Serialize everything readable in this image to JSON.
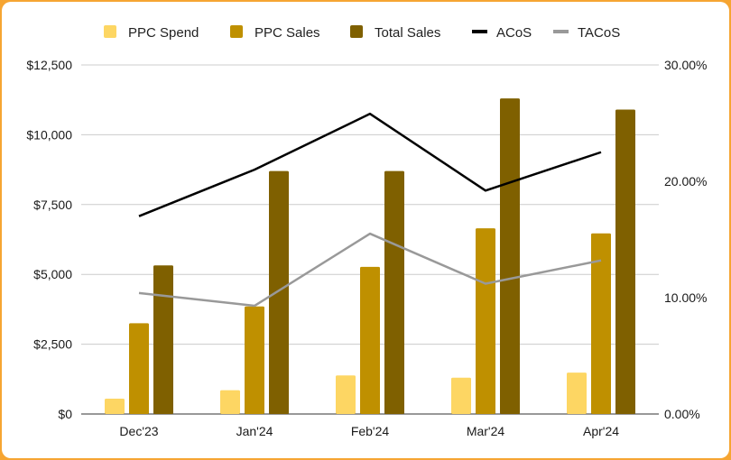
{
  "chart_data": {
    "type": "bar",
    "categories": [
      "Dec'23",
      "Jan'24",
      "Feb'24",
      "Mar'24",
      "Apr'24"
    ],
    "series": [
      {
        "name": "PPC Spend",
        "kind": "bar",
        "axis": "left",
        "color": "#fdd663",
        "values": [
          550,
          850,
          1380,
          1300,
          1480
        ]
      },
      {
        "name": "PPC Sales",
        "kind": "bar",
        "axis": "left",
        "color": "#bf9000",
        "values": [
          3250,
          3850,
          5270,
          6650,
          6470
        ]
      },
      {
        "name": "Total Sales",
        "kind": "bar",
        "axis": "left",
        "color": "#7f6000",
        "values": [
          5320,
          8700,
          8700,
          11300,
          10900
        ]
      },
      {
        "name": "ACoS",
        "kind": "line",
        "axis": "right",
        "color": "#000000",
        "values": [
          17.0,
          21.0,
          25.8,
          19.2,
          22.5
        ]
      },
      {
        "name": "TACoS",
        "kind": "line",
        "axis": "right",
        "color": "#999999",
        "values": [
          10.4,
          9.3,
          15.5,
          11.2,
          13.2
        ]
      }
    ],
    "y_left": {
      "range": [
        0,
        12500
      ],
      "ticks": [
        "$0",
        "$2,500",
        "$5,000",
        "$7,500",
        "$10,000",
        "$12,500"
      ]
    },
    "y_right": {
      "range": [
        0,
        30
      ],
      "ticks": [
        "0.00%",
        "10.00%",
        "20.00%",
        "30.00%"
      ]
    },
    "title": "",
    "xlabel": "",
    "ylabel": "",
    "grid": true,
    "legend": "top-center"
  }
}
